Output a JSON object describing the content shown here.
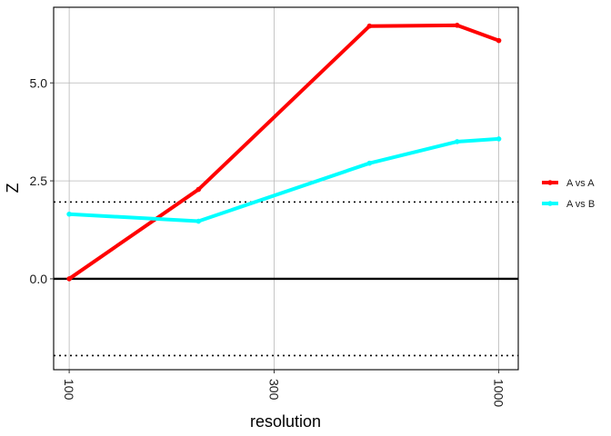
{
  "chart_data": {
    "type": "line",
    "title": "",
    "xlabel": "resolution",
    "ylabel": "Z",
    "x_scale": "log10",
    "xlim": [
      92,
      1110
    ],
    "ylim": [
      -2.32,
      6.93
    ],
    "x_ticks": [
      100,
      300,
      1000
    ],
    "x_tick_labels": [
      "100",
      "300",
      "1000"
    ],
    "y_ticks": [
      0,
      2.5,
      5
    ],
    "y_tick_labels": [
      "0.0",
      "2.5",
      "5.0"
    ],
    "grid": true,
    "reference_lines": [
      {
        "y": 0,
        "style": "solid"
      },
      {
        "y": 1.96,
        "style": "dotted"
      },
      {
        "y": -1.96,
        "style": "dotted"
      }
    ],
    "legend_position": "right",
    "series": [
      {
        "name": "A vs A",
        "color": "#ff0000",
        "x": [
          100,
          200,
          500,
          800,
          1000
        ],
        "y": [
          0.0,
          2.28,
          6.45,
          6.47,
          6.08
        ]
      },
      {
        "name": "A vs B",
        "color": "#00ffff",
        "x": [
          100,
          200,
          500,
          800,
          1000
        ],
        "y": [
          1.65,
          1.47,
          2.95,
          3.5,
          3.57
        ]
      }
    ]
  }
}
